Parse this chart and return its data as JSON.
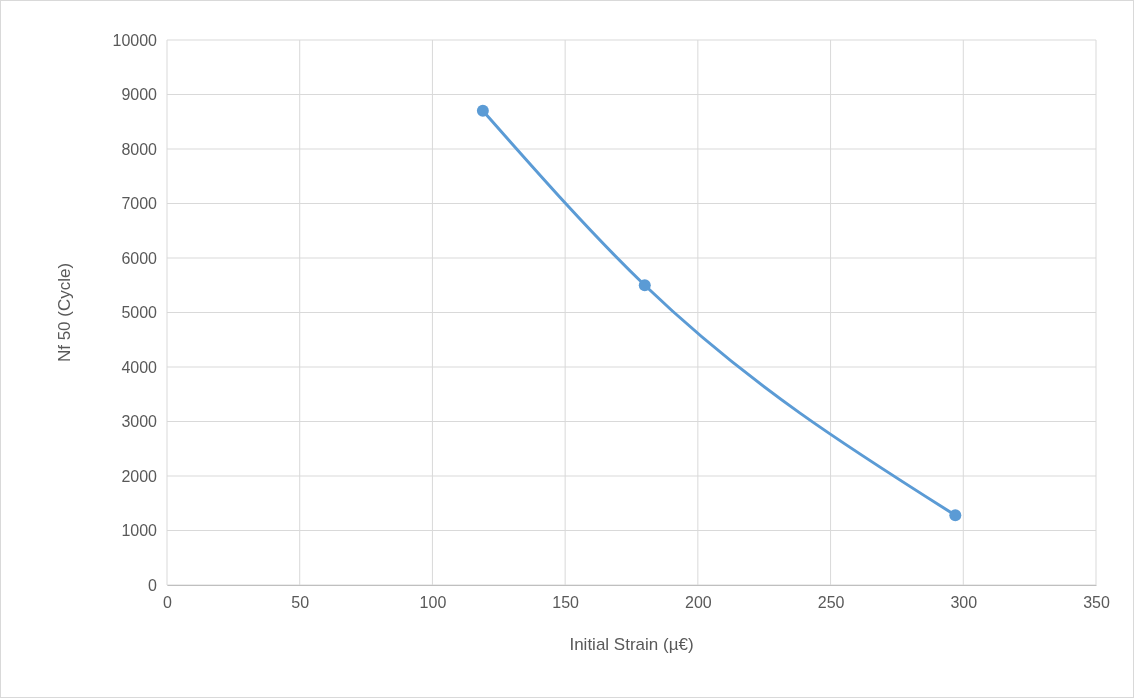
{
  "chart_data": {
    "type": "line",
    "xlabel": "Initial Strain (µ€)",
    "ylabel": "Nf 50 (Cycle)",
    "x": [
      119,
      180,
      297
    ],
    "series": [
      {
        "color": "#5b9bd5",
        "values": [
          8700,
          5500,
          1280
        ]
      }
    ],
    "xlim": [
      0,
      350
    ],
    "xticks": [
      0,
      50,
      100,
      150,
      200,
      250,
      300,
      350
    ],
    "ylim": [
      0,
      10000
    ],
    "yticks": [
      0,
      1000,
      2000,
      3000,
      4000,
      5000,
      6000,
      7000,
      8000,
      9000,
      10000
    ],
    "grid": true,
    "marker": "circle",
    "line_style": "solid"
  }
}
